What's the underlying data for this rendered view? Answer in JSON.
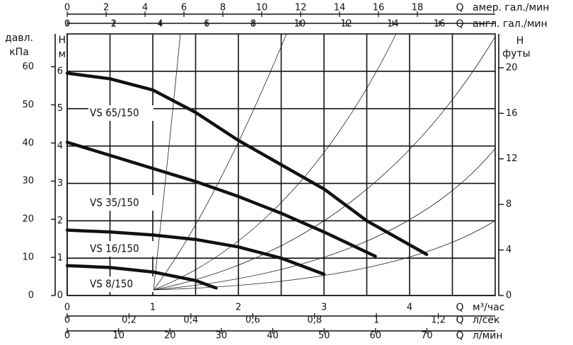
{
  "chart_data": {
    "type": "line",
    "q_label": "Q",
    "ylabel": "Н",
    "yunit": "м",
    "xlim": [
      0,
      5
    ],
    "xticks": [
      0,
      1,
      2,
      3,
      4
    ],
    "xminor": [
      0.5,
      1.5,
      2.5,
      3.5,
      4.5
    ],
    "xunit": "м³/час",
    "ylim": [
      0,
      7
    ],
    "yticks": [
      0,
      1,
      2,
      3,
      4,
      5,
      6
    ],
    "grid": true,
    "left_axis": {
      "label1": "давл.",
      "label2": "кПа",
      "lim": [
        0,
        68.6
      ],
      "ticks": [
        0,
        10,
        20,
        30,
        40,
        50,
        60
      ]
    },
    "right_axis": {
      "label1": "Н",
      "label2": "футы",
      "lim": [
        0,
        22.97
      ],
      "ticks": [
        0,
        4,
        8,
        12,
        16,
        20
      ]
    },
    "top_axes": [
      {
        "label": "амер. гал./мин",
        "lim": [
          0,
          22
        ],
        "ticks": [
          0,
          2,
          4,
          6,
          8,
          10,
          12,
          14,
          16,
          18
        ]
      },
      {
        "label": "англ. гал./мин",
        "lim": [
          0,
          18.4
        ],
        "ticks": [
          0,
          2,
          4,
          6,
          8,
          10,
          12,
          14,
          16
        ]
      }
    ],
    "bottom_axes": [
      {
        "label": "л/сек",
        "lim": [
          0,
          1.384
        ],
        "ticks": [
          0,
          {
            "value": 0.2,
            "label": "0,2"
          },
          {
            "value": 0.4,
            "label": "0,4"
          },
          {
            "value": 0.6,
            "label": "0,6"
          },
          {
            "value": 0.8,
            "label": "0,8"
          },
          1,
          {
            "value": 1.2,
            "label": "1,2"
          }
        ]
      },
      {
        "label": "л/мин",
        "lim": [
          0,
          83.3
        ],
        "ticks": [
          0,
          10,
          20,
          30,
          40,
          50,
          60,
          70
        ]
      }
    ],
    "series": [
      {
        "name": "VS 65/150",
        "color": "#111111",
        "x": [
          0,
          0.5,
          1,
          1.5,
          2,
          2.5,
          3,
          3.5,
          4.2
        ],
        "values": [
          5.95,
          5.8,
          5.5,
          4.9,
          4.15,
          3.5,
          2.85,
          2.0,
          1.1
        ]
      },
      {
        "name": "VS 35/150",
        "color": "#111111",
        "x": [
          0,
          0.5,
          1,
          1.5,
          2,
          2.5,
          3,
          3.6
        ],
        "values": [
          4.1,
          3.75,
          3.4,
          3.05,
          2.65,
          2.2,
          1.7,
          1.05
        ]
      },
      {
        "name": "VS 16/150",
        "color": "#111111",
        "x": [
          0,
          0.5,
          1,
          1.5,
          2,
          2.5,
          3
        ],
        "values": [
          1.75,
          1.7,
          1.62,
          1.5,
          1.3,
          1.0,
          0.57
        ]
      },
      {
        "name": "VS 8/150",
        "color": "#111111",
        "x": [
          0,
          0.5,
          1,
          1.5,
          1.74
        ],
        "values": [
          0.8,
          0.75,
          0.63,
          0.4,
          0.2
        ]
      }
    ]
  }
}
